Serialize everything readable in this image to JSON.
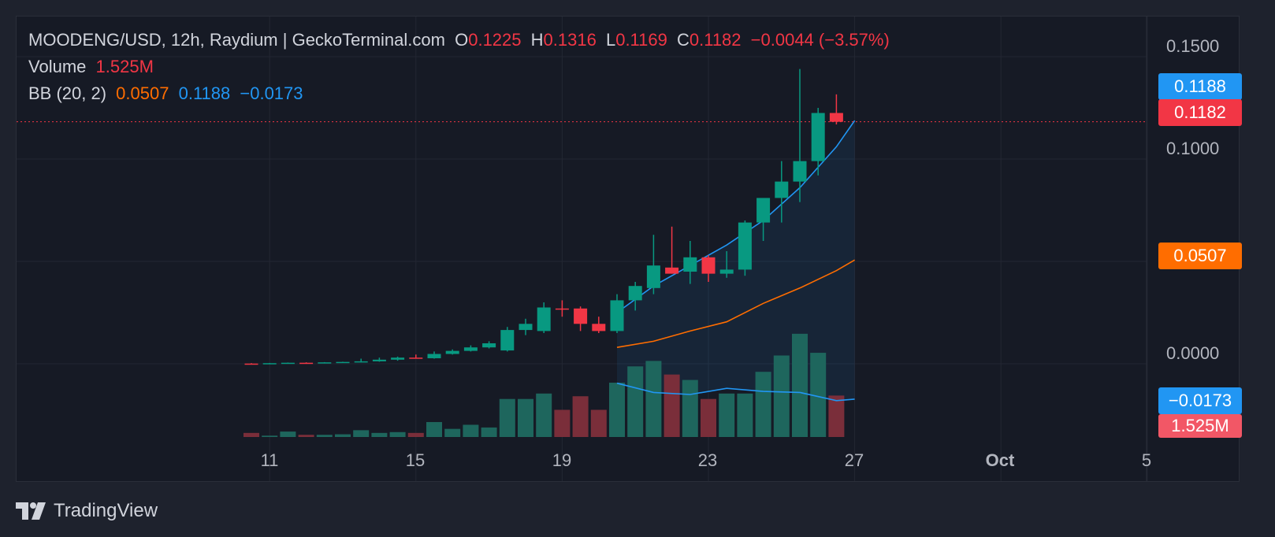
{
  "legend": {
    "symbol": "MOODENG/USD, 12h, Raydium | GeckoTerminal.com",
    "o_label": "O",
    "o_value": "0.1225",
    "h_label": "H",
    "h_value": "0.1316",
    "l_label": "L",
    "l_value": "0.1169",
    "c_label": "C",
    "c_value": "0.1182",
    "change": "−0.0044 (−3.57%)",
    "volume_label": "Volume",
    "volume_value": "1.525M",
    "bb_label": "BB (20, 2)",
    "bb_basis": "0.0507",
    "bb_upper": "0.1188",
    "bb_lower": "−0.0173"
  },
  "price_labels": {
    "upper": "0.1188",
    "last": "0.1182",
    "basis": "0.0507",
    "lower": "−0.0173",
    "volume": "1.525M"
  },
  "brand": {
    "name": "TradingView"
  },
  "colors": {
    "up": "#089981",
    "down": "#f23645",
    "bb_basis": "#ff6d00",
    "bb_band": "#2196f3",
    "vol_up": "#1e665d",
    "vol_down": "#7a2e3a"
  },
  "chart_data": {
    "type": "candlestick",
    "interval": "12h",
    "y_ticks": [
      "0.1500",
      "0.1000",
      "0.0000"
    ],
    "ylim": [
      -0.035,
      0.165
    ],
    "x_ticks": [
      {
        "label": "11",
        "index": 1
      },
      {
        "label": "15",
        "index": 9
      },
      {
        "label": "19",
        "index": 17
      },
      {
        "label": "23",
        "index": 25
      },
      {
        "label": "27",
        "index": 33
      },
      {
        "label": "Oct",
        "index": 41
      },
      {
        "label": "5",
        "index": 49
      }
    ],
    "candles": [
      {
        "o": 0.0001,
        "h": 0.0003,
        "l": 0.0,
        "c": 0.0,
        "v": 0.15
      },
      {
        "o": 0.0,
        "h": 0.0004,
        "l": 0.0,
        "c": 0.0003,
        "v": 0.05
      },
      {
        "o": 0.0003,
        "h": 0.0006,
        "l": 0.0002,
        "c": 0.0005,
        "v": 0.2
      },
      {
        "o": 0.0005,
        "h": 0.0007,
        "l": 0.0003,
        "c": 0.0004,
        "v": 0.08
      },
      {
        "o": 0.0004,
        "h": 0.0008,
        "l": 0.0003,
        "c": 0.0007,
        "v": 0.08
      },
      {
        "o": 0.0007,
        "h": 0.001,
        "l": 0.0005,
        "c": 0.0009,
        "v": 0.1
      },
      {
        "o": 0.0009,
        "h": 0.0025,
        "l": 0.0007,
        "c": 0.0012,
        "v": 0.25
      },
      {
        "o": 0.0012,
        "h": 0.003,
        "l": 0.001,
        "c": 0.002,
        "v": 0.15
      },
      {
        "o": 0.002,
        "h": 0.0035,
        "l": 0.0015,
        "c": 0.003,
        "v": 0.18
      },
      {
        "o": 0.003,
        "h": 0.0045,
        "l": 0.0025,
        "c": 0.0027,
        "v": 0.15
      },
      {
        "o": 0.0027,
        "h": 0.006,
        "l": 0.0025,
        "c": 0.0048,
        "v": 0.55
      },
      {
        "o": 0.0048,
        "h": 0.007,
        "l": 0.0045,
        "c": 0.0063,
        "v": 0.3
      },
      {
        "o": 0.0063,
        "h": 0.009,
        "l": 0.006,
        "c": 0.008,
        "v": 0.45
      },
      {
        "o": 0.008,
        "h": 0.011,
        "l": 0.0075,
        "c": 0.01,
        "v": 0.35
      },
      {
        "o": 0.0065,
        "h": 0.018,
        "l": 0.006,
        "c": 0.0165,
        "v": 1.4
      },
      {
        "o": 0.0165,
        "h": 0.022,
        "l": 0.014,
        "c": 0.0195,
        "v": 1.4
      },
      {
        "o": 0.016,
        "h": 0.03,
        "l": 0.015,
        "c": 0.0275,
        "v": 1.6
      },
      {
        "o": 0.027,
        "h": 0.031,
        "l": 0.023,
        "c": 0.0265,
        "v": 1.0
      },
      {
        "o": 0.027,
        "h": 0.028,
        "l": 0.016,
        "c": 0.0195,
        "v": 1.5
      },
      {
        "o": 0.0195,
        "h": 0.023,
        "l": 0.015,
        "c": 0.016,
        "v": 1.0
      },
      {
        "o": 0.016,
        "h": 0.034,
        "l": 0.015,
        "c": 0.031,
        "v": 2.0
      },
      {
        "o": 0.031,
        "h": 0.04,
        "l": 0.026,
        "c": 0.038,
        "v": 2.6
      },
      {
        "o": 0.037,
        "h": 0.063,
        "l": 0.034,
        "c": 0.048,
        "v": 2.8
      },
      {
        "o": 0.047,
        "h": 0.067,
        "l": 0.044,
        "c": 0.044,
        "v": 2.3
      },
      {
        "o": 0.045,
        "h": 0.06,
        "l": 0.039,
        "c": 0.052,
        "v": 2.1
      },
      {
        "o": 0.052,
        "h": 0.053,
        "l": 0.04,
        "c": 0.044,
        "v": 1.4
      },
      {
        "o": 0.044,
        "h": 0.055,
        "l": 0.042,
        "c": 0.046,
        "v": 1.6
      },
      {
        "o": 0.046,
        "h": 0.07,
        "l": 0.043,
        "c": 0.069,
        "v": 1.6
      },
      {
        "o": 0.069,
        "h": 0.08,
        "l": 0.06,
        "c": 0.081,
        "v": 2.4
      },
      {
        "o": 0.081,
        "h": 0.099,
        "l": 0.069,
        "c": 0.089,
        "v": 3.0
      },
      {
        "o": 0.089,
        "h": 0.144,
        "l": 0.079,
        "c": 0.099,
        "v": 3.8
      },
      {
        "o": 0.099,
        "h": 0.125,
        "l": 0.092,
        "c": 0.1225,
        "v": 3.1
      },
      {
        "o": 0.1225,
        "h": 0.1316,
        "l": 0.1169,
        "c": 0.1182,
        "v": 1.525
      }
    ],
    "bb_basis_series": [
      {
        "i": 20,
        "v": 0.008
      },
      {
        "i": 22,
        "v": 0.011
      },
      {
        "i": 24,
        "v": 0.016
      },
      {
        "i": 26,
        "v": 0.0205
      },
      {
        "i": 28,
        "v": 0.0295
      },
      {
        "i": 30,
        "v": 0.037
      },
      {
        "i": 32,
        "v": 0.0455
      },
      {
        "i": 33,
        "v": 0.0507
      }
    ],
    "bb_upper_series": [
      {
        "i": 20,
        "v": 0.025
      },
      {
        "i": 22,
        "v": 0.038
      },
      {
        "i": 24,
        "v": 0.048
      },
      {
        "i": 26,
        "v": 0.058
      },
      {
        "i": 28,
        "v": 0.07
      },
      {
        "i": 30,
        "v": 0.086
      },
      {
        "i": 32,
        "v": 0.106
      },
      {
        "i": 33,
        "v": 0.1188
      }
    ],
    "bb_lower_series": [
      {
        "i": 20,
        "v": -0.0095
      },
      {
        "i": 22,
        "v": -0.014
      },
      {
        "i": 24,
        "v": -0.015
      },
      {
        "i": 26,
        "v": -0.012
      },
      {
        "i": 28,
        "v": -0.0135
      },
      {
        "i": 30,
        "v": -0.014
      },
      {
        "i": 32,
        "v": -0.018
      },
      {
        "i": 33,
        "v": -0.0173
      }
    ]
  }
}
